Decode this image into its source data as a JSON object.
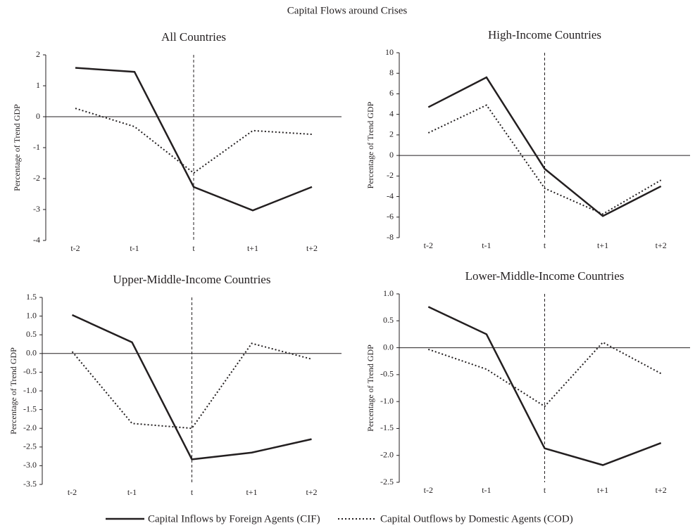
{
  "title": "Capital Flows around Crises",
  "chart_data": [
    {
      "type": "line",
      "title": "All Countries",
      "y_label": "Percentage of Trend GDP",
      "categories": [
        "t-2",
        "t-1",
        "t",
        "t+1",
        "t+2"
      ],
      "ylim": [
        -4,
        2
      ],
      "yticks": [
        -4,
        -3,
        -2,
        -1,
        0,
        1,
        2
      ],
      "series": [
        {
          "name": "Capital Inflows by Foreign Agents (CIF)",
          "color": "#231f20",
          "style": "solid",
          "values": [
            1.58,
            1.45,
            -2.27,
            -3.03,
            -2.27
          ]
        },
        {
          "name": "Capital Outflows by Domestic Agents (COD)",
          "color": "#231f20",
          "style": "dotted",
          "values": [
            0.27,
            -0.32,
            -1.82,
            -0.45,
            -0.57
          ]
        }
      ]
    },
    {
      "type": "line",
      "title": "High-Income Countries",
      "y_label": "Percentage of Trend GDP",
      "categories": [
        "t-2",
        "t-1",
        "t",
        "t+1",
        "t+2"
      ],
      "ylim": [
        -8,
        10
      ],
      "yticks": [
        -8,
        -6,
        -4,
        -2,
        0,
        2,
        4,
        6,
        8,
        10
      ],
      "series": [
        {
          "color": "#231f20",
          "style": "solid",
          "values": [
            4.7,
            7.6,
            -1.3,
            -5.9,
            -3.0
          ]
        },
        {
          "color": "#231f20",
          "style": "dotted",
          "values": [
            2.2,
            4.9,
            -3.2,
            -5.7,
            -2.4
          ]
        }
      ]
    },
    {
      "type": "line",
      "title": "Upper-Middle-Income Countries",
      "y_label": "Percentage of Trend GDP",
      "categories": [
        "t-2",
        "t-1",
        "t",
        "t+1",
        "t+2"
      ],
      "ylim": [
        -3.5,
        1.5
      ],
      "yticks": [
        -3.5,
        {
          "value": -3,
          "label": "-3.0"
        },
        -2.5,
        {
          "value": -2,
          "label": "-2.0"
        },
        -1.5,
        {
          "value": -1,
          "label": "-1.0"
        },
        -0.5,
        {
          "value": 0,
          "label": "0.0"
        },
        0.5,
        {
          "value": 1,
          "label": "1.0"
        },
        1.5
      ],
      "series": [
        {
          "color": "#231f20",
          "style": "solid",
          "values": [
            1.03,
            0.3,
            -2.83,
            -2.65,
            -2.29
          ]
        },
        {
          "color": "#231f20",
          "style": "dotted",
          "values": [
            0.05,
            -1.87,
            -2.0,
            0.27,
            -0.15
          ]
        }
      ]
    },
    {
      "type": "line",
      "title": "Lower-Middle-Income Countries",
      "y_label": "Percentage of Trend GDP",
      "categories": [
        "t-2",
        "t-1",
        "t",
        "t+1",
        "t+2"
      ],
      "ylim": [
        -2.5,
        1
      ],
      "yticks": [
        -2.5,
        {
          "value": -2,
          "label": "-2.0"
        },
        -1.5,
        {
          "value": -1,
          "label": "-1.0"
        },
        -0.5,
        {
          "value": 0,
          "label": "0.0"
        },
        0.5,
        {
          "value": 1,
          "label": "1.0"
        }
      ],
      "series": [
        {
          "color": "#231f20",
          "style": "solid",
          "values": [
            0.76,
            0.25,
            -1.87,
            -2.18,
            -1.77
          ]
        },
        {
          "color": "#231f20",
          "style": "dotted",
          "values": [
            -0.03,
            -0.4,
            -1.09,
            0.1,
            -0.48
          ]
        }
      ]
    }
  ]
}
